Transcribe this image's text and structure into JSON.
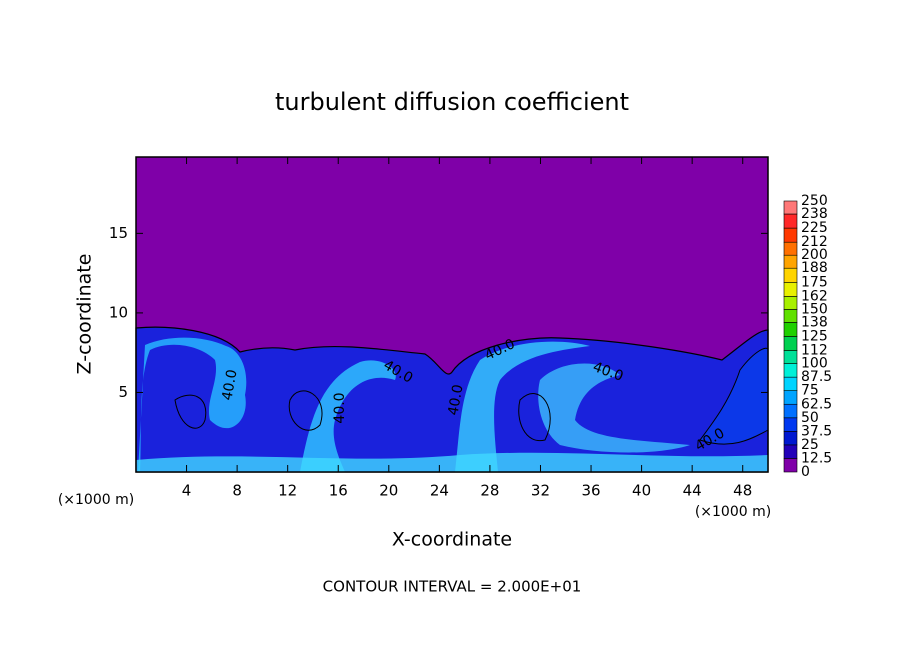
{
  "chart_data": {
    "type": "contour",
    "title": "turbulent diffusion coefficient",
    "x_label": "X-coordinate",
    "y_label": "Z-coordinate",
    "x_unit": "(×1000 m)",
    "y_unit": "(×1000 m)",
    "footer": "CONTOUR INTERVAL = 2.000E+01",
    "background_color": "#7f00a8",
    "xlim": [
      0,
      50
    ],
    "xticks": [
      4,
      8,
      12,
      16,
      20,
      24,
      28,
      32,
      36,
      40,
      44,
      48
    ],
    "ylim": [
      0,
      19.8
    ],
    "yticks": [
      5,
      10,
      15
    ],
    "contour_labels": [
      "40.0",
      "40.0",
      "40.0",
      "40.0",
      "40.0",
      "40.0",
      "40.0"
    ],
    "colorbar": {
      "levels": [
        0,
        12.5,
        25,
        37.5,
        50,
        62.5,
        75,
        87.5,
        100,
        112,
        125,
        138,
        150,
        162,
        175,
        188,
        200,
        212,
        225,
        238,
        250
      ],
      "colors": [
        "#7f00a8",
        "#2200b8",
        "#0018d0",
        "#0038f0",
        "#0070ff",
        "#00a4ff",
        "#00d4ff",
        "#00f0d8",
        "#00e098",
        "#00d050",
        "#20d000",
        "#60e000",
        "#a8f000",
        "#e8f000",
        "#ffd400",
        "#ffa400",
        "#ff7000",
        "#ff3800",
        "#ff2828",
        "#ff7878"
      ]
    }
  }
}
